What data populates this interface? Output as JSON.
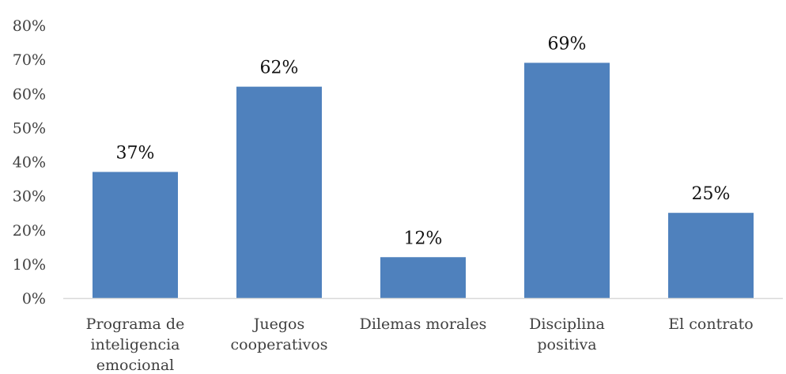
{
  "chart_data": {
    "type": "bar",
    "categories": [
      [
        "Programa de",
        "inteligencia",
        "emocional"
      ],
      [
        "Juegos",
        "cooperativos"
      ],
      [
        "Dilemas morales"
      ],
      [
        "Disciplina",
        "positiva"
      ],
      [
        "El contrato"
      ]
    ],
    "values": [
      37,
      62,
      12,
      69,
      25
    ],
    "data_labels": [
      "37%",
      "62%",
      "12%",
      "69%",
      "25%"
    ],
    "ylim": [
      0,
      80
    ],
    "yticks": [
      0,
      10,
      20,
      30,
      40,
      50,
      60,
      70,
      80
    ],
    "ytick_labels": [
      "0%",
      "10%",
      "20%",
      "30%",
      "40%",
      "50%",
      "60%",
      "70%",
      "80%"
    ],
    "title": "",
    "xlabel": "",
    "ylabel": "",
    "grid": false,
    "legend": "none",
    "bar_color": "#4f81bd",
    "axis_color": "#d9d9d9"
  }
}
